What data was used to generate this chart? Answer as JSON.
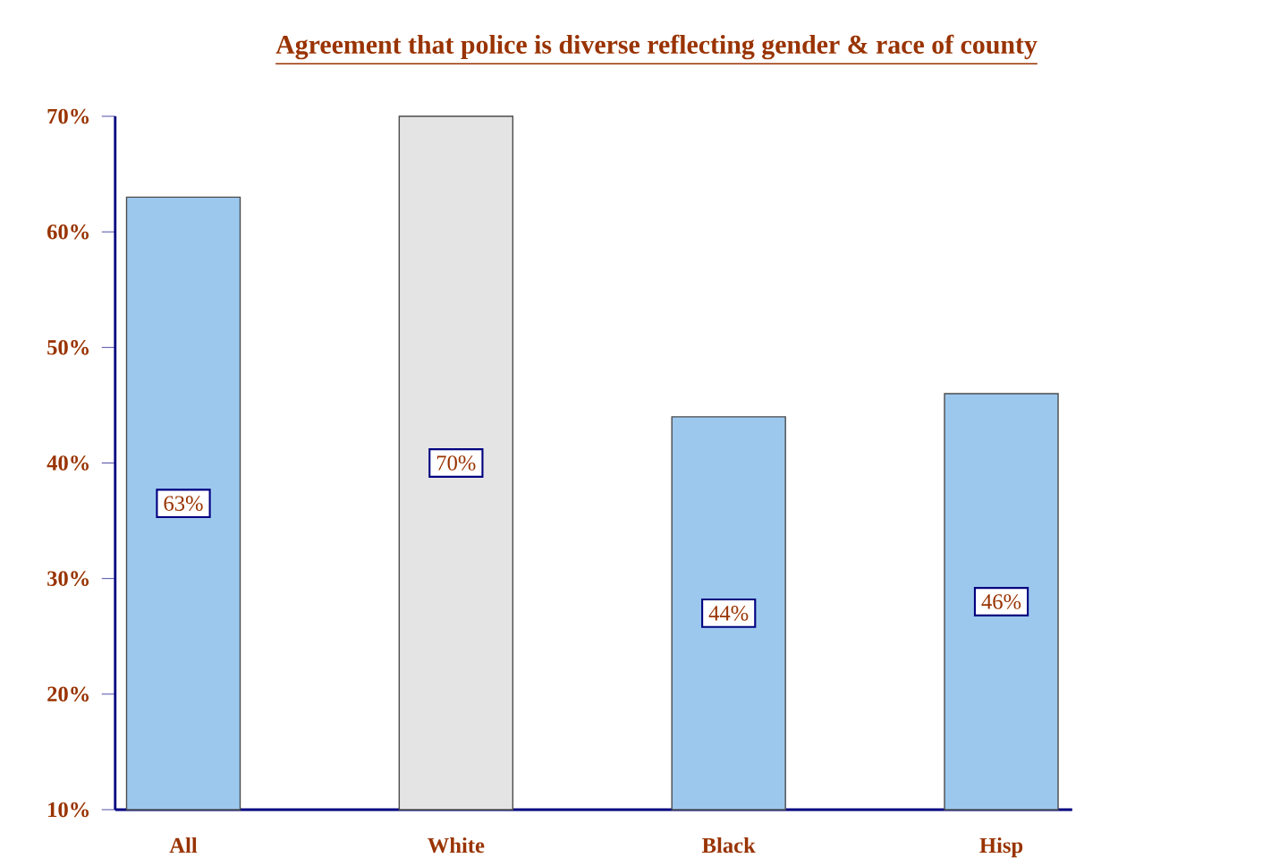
{
  "chart_data": {
    "type": "bar",
    "title": "Agreement that police is diverse reflecting gender & race of  county",
    "categories": [
      "All",
      "White",
      "Black",
      "Hisp"
    ],
    "values": [
      63,
      70,
      44,
      46
    ],
    "colors": [
      "#9cc8ee",
      "#e4e4e4",
      "#9cc8ee",
      "#9cc8ee"
    ],
    "value_labels": [
      "63%",
      "70%",
      "44%",
      "46%"
    ],
    "ylim": [
      10,
      70
    ],
    "yticks": [
      {
        "value": 10,
        "label": "10%"
      },
      {
        "value": 20,
        "label": "20%"
      },
      {
        "value": 30,
        "label": "30%"
      },
      {
        "value": 40,
        "label": "40%"
      },
      {
        "value": 50,
        "label": "50%"
      },
      {
        "value": 60,
        "label": "60%"
      },
      {
        "value": 70,
        "label": "70%"
      }
    ],
    "grid": false
  }
}
